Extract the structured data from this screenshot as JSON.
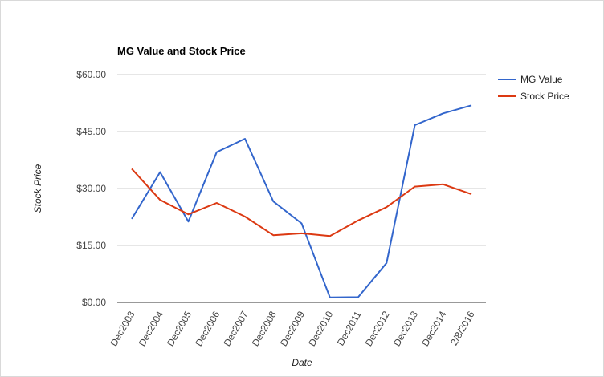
{
  "chart_data": {
    "type": "line",
    "title": "MG Value and Stock Price",
    "xlabel": "Date",
    "ylabel": "Stock Price",
    "categories": [
      "Dec2003",
      "Dec2004",
      "Dec2005",
      "Dec2006",
      "Dec2007",
      "Dec2008",
      "Dec2009",
      "Dec2010",
      "Dec2011",
      "Dec2012",
      "Dec2013",
      "Dec2014",
      "2/8/2016"
    ],
    "y_ticks": [
      "$0.00",
      "$15.00",
      "$30.00",
      "$45.00",
      "$60.00"
    ],
    "ylim": [
      0,
      60
    ],
    "grid": true,
    "legend_position": "right",
    "series": [
      {
        "name": "MG Value",
        "color": "#3366cc",
        "values": [
          22.0,
          34.3,
          21.3,
          39.6,
          43.1,
          26.6,
          20.8,
          1.3,
          1.4,
          10.4,
          46.7,
          49.8,
          51.9
        ]
      },
      {
        "name": "Stock Price",
        "color": "#dc3912",
        "values": [
          35.2,
          27.0,
          23.2,
          26.2,
          22.6,
          17.7,
          18.2,
          17.5,
          21.6,
          25.1,
          30.5,
          31.1,
          28.5
        ]
      }
    ]
  }
}
